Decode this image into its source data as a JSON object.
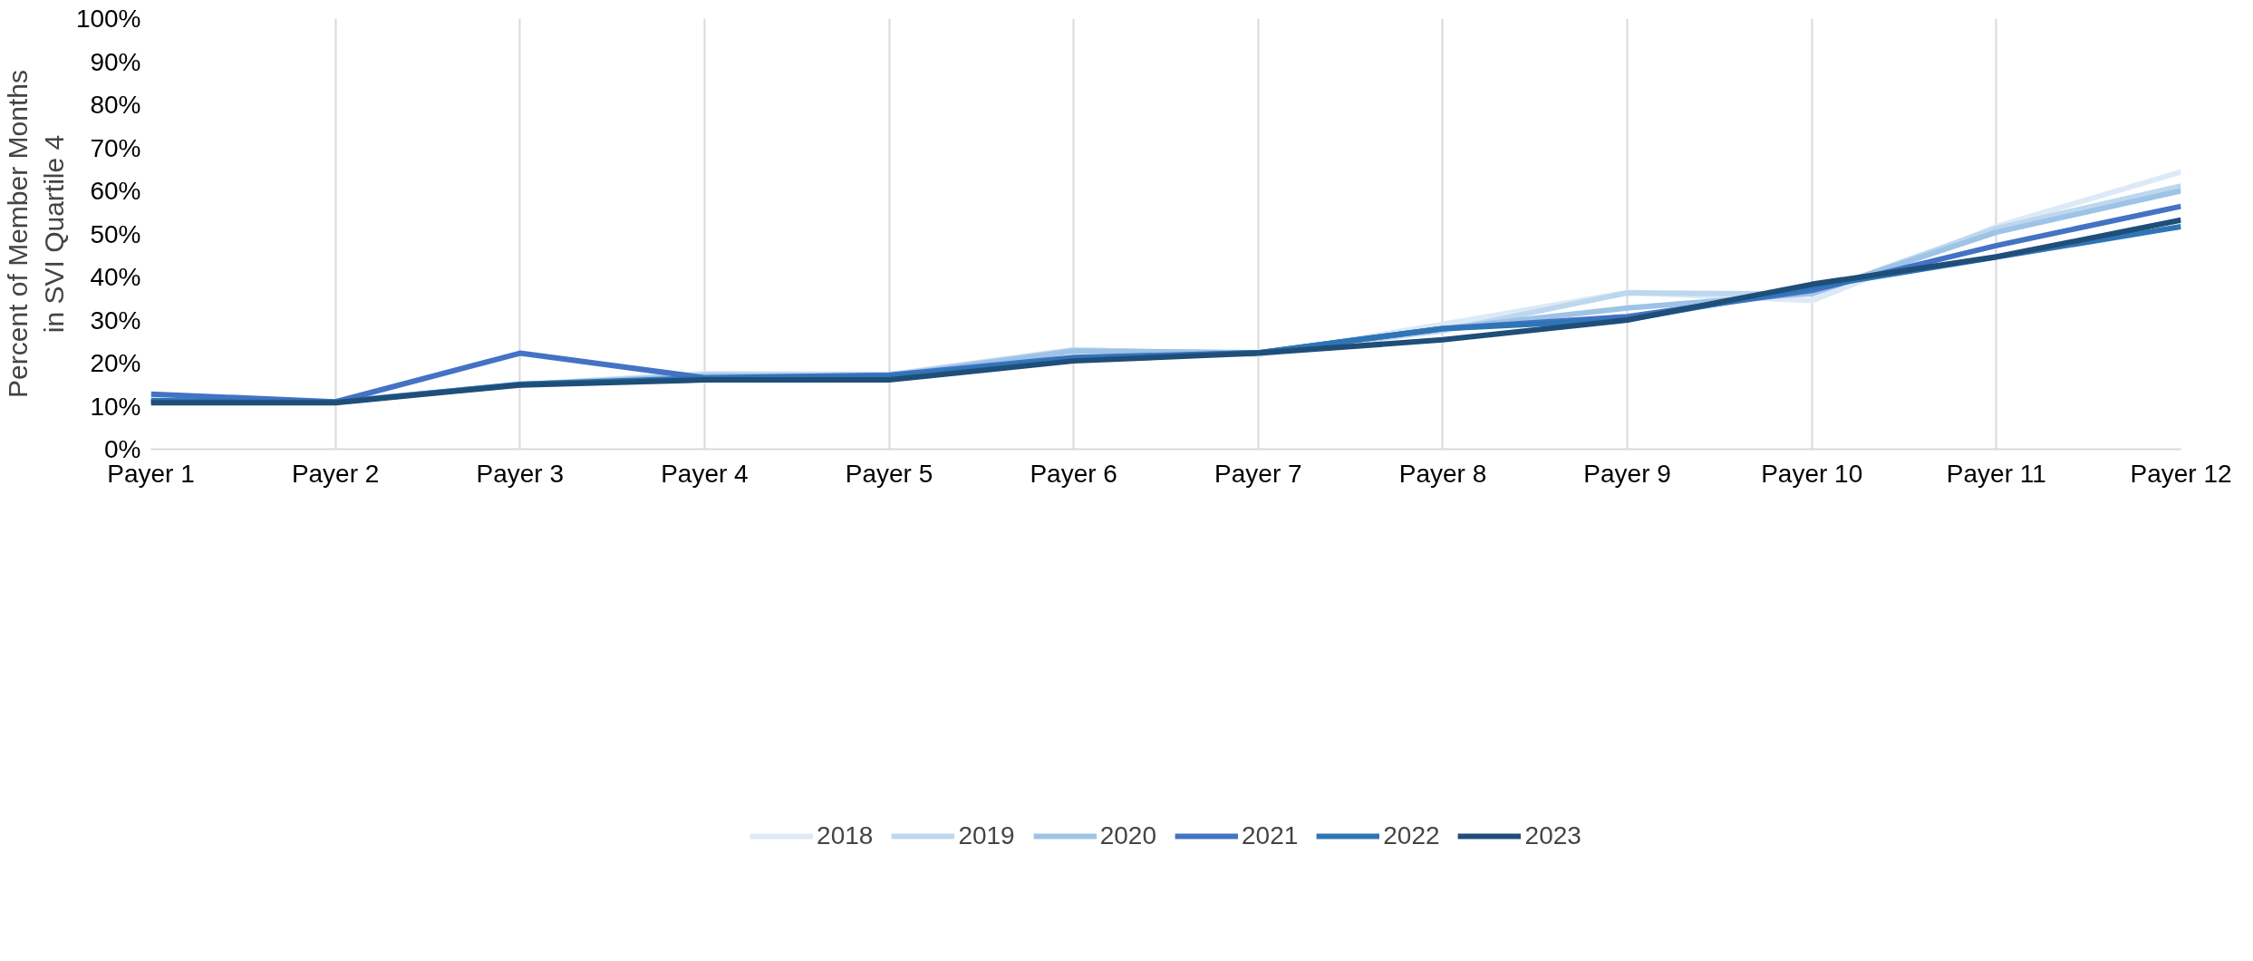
{
  "chart_data": {
    "type": "line",
    "ylabel": "Percent of Member Months\nin SVI Quartile 4",
    "categories": [
      "Payer 1",
      "Payer 2",
      "Payer 3",
      "Payer 4",
      "Payer 5",
      "Payer 6",
      "Payer 7",
      "Payer 8",
      "Payer 9",
      "Payer 10",
      "Payer 11",
      "Payer 12"
    ],
    "ylim": [
      0,
      100
    ],
    "yticks": [
      {
        "value": 0,
        "label": "0%"
      },
      {
        "value": 10,
        "label": "10%"
      },
      {
        "value": 20,
        "label": "20%"
      },
      {
        "value": 30,
        "label": "30%"
      },
      {
        "value": 40,
        "label": "40%"
      },
      {
        "value": 50,
        "label": "50%"
      },
      {
        "value": 60,
        "label": "60%"
      },
      {
        "value": 70,
        "label": "70%"
      },
      {
        "value": 80,
        "label": "80%"
      },
      {
        "value": 90,
        "label": "90%"
      },
      {
        "value": 100,
        "label": "100%"
      }
    ],
    "grid": "x",
    "legend": "bottom",
    "marker": "none",
    "line_style": "solid",
    "series": [
      {
        "name": "2018",
        "color": "#dde9f6",
        "values": [
          11.1,
          11.0,
          15.0,
          17.6,
          17.4,
          23.1,
          21.9,
          29.0,
          36.4,
          34.5,
          51.7,
          64.4
        ]
      },
      {
        "name": "2019",
        "color": "#bdd7ee",
        "values": [
          11.1,
          11.0,
          15.0,
          17.3,
          17.2,
          23.0,
          22.3,
          27.5,
          36.3,
          36.0,
          51.3,
          61.1
        ]
      },
      {
        "name": "2020",
        "color": "#9dc3e6",
        "values": [
          11.1,
          11.0,
          15.0,
          17.0,
          17.0,
          22.8,
          22.4,
          28.0,
          32.8,
          36.2,
          50.4,
          60.0
        ]
      },
      {
        "name": "2021",
        "color": "#4472c4",
        "values": [
          12.8,
          11.0,
          22.3,
          16.6,
          17.2,
          21.3,
          22.4,
          28.0,
          30.8,
          36.9,
          47.3,
          56.4
        ]
      },
      {
        "name": "2022",
        "color": "#2e75b6",
        "values": [
          11.3,
          10.9,
          15.1,
          16.5,
          16.8,
          21.0,
          22.4,
          28.0,
          30.1,
          37.6,
          44.6,
          51.7
        ]
      },
      {
        "name": "2023",
        "color": "#1f4e79",
        "values": [
          10.8,
          10.8,
          14.9,
          16.1,
          16.1,
          20.5,
          22.3,
          25.4,
          30.0,
          38.3,
          44.7,
          53.2
        ]
      }
    ]
  }
}
